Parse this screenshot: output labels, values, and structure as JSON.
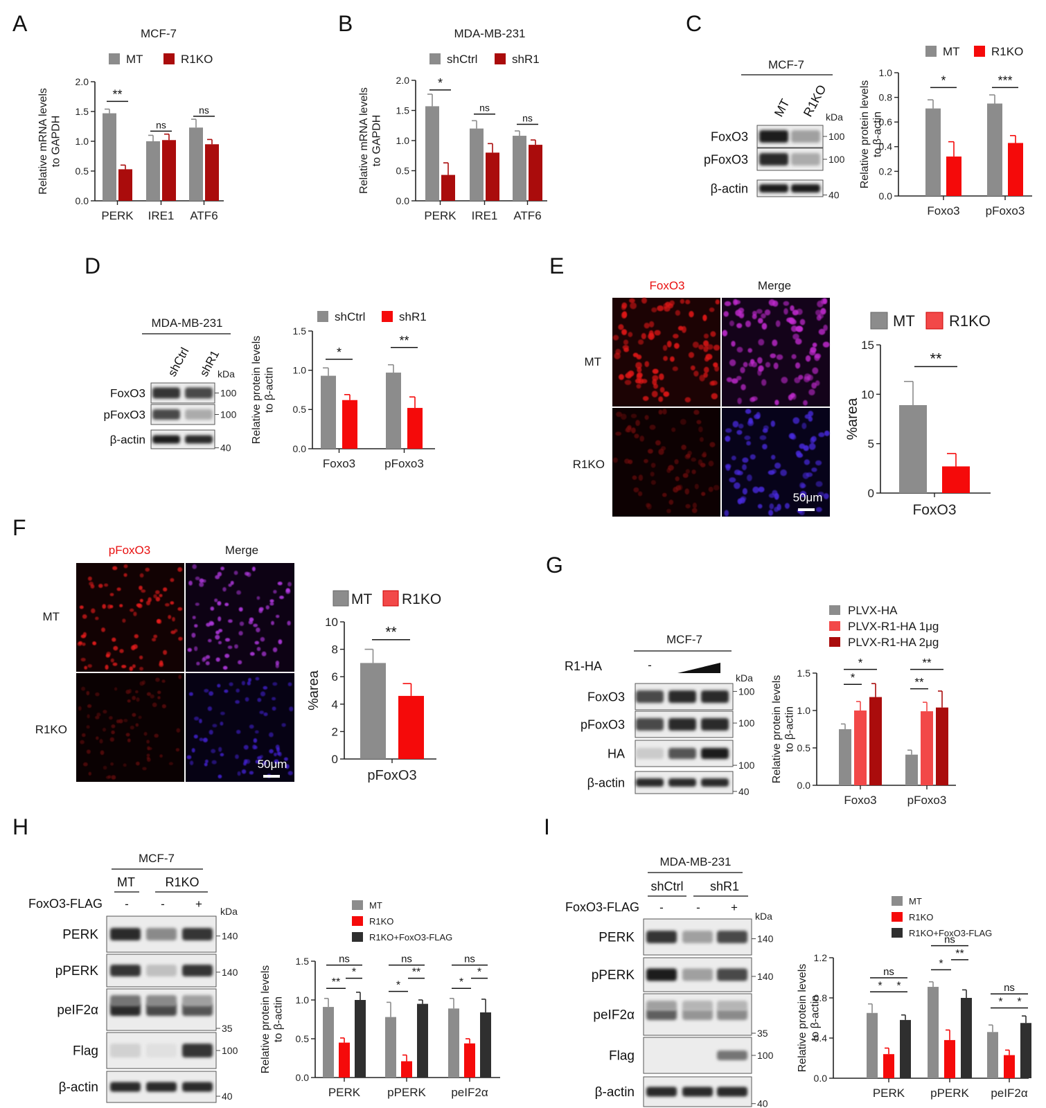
{
  "colors": {
    "gray": "#8c8c8c",
    "dark_red": "#aa0c0c",
    "red": "#f50a0a",
    "light_red": "#f24848",
    "black_bar": "#2f2f2f",
    "text_red": "#e81010"
  },
  "panels": {
    "A": {
      "letter": "A",
      "title": "MCF-7",
      "legend": [
        "MT",
        "R1KO"
      ]
    },
    "B": {
      "letter": "B",
      "title": "MDA-MB-231",
      "legend": [
        "shCtrl",
        "shR1"
      ]
    },
    "C": {
      "letter": "C",
      "title": "MCF-7",
      "legend": [
        "MT",
        "R1KO"
      ],
      "lanes": [
        "MT",
        "R1KO"
      ],
      "blot_rows": [
        "FoxO3",
        "pFoxO3",
        "β-actin"
      ],
      "kda_label": "kDa",
      "kda_marks": [
        "100",
        "100",
        "40"
      ]
    },
    "D": {
      "letter": "D",
      "title": "MDA-MB-231",
      "legend": [
        "shCtrl",
        "shR1"
      ],
      "lanes": [
        "shCtrl",
        "shR1"
      ],
      "blot_rows": [
        "FoxO3",
        "pFoxO3",
        "β-actin"
      ],
      "kda_label": "kDa",
      "kda_marks": [
        "100",
        "100",
        "40"
      ]
    },
    "E": {
      "letter": "E",
      "col_labels": [
        "FoxO3",
        "Merge"
      ],
      "row_labels": [
        "MT",
        "R1KO"
      ],
      "scale": "50μm",
      "legend": [
        "MT",
        "R1KO"
      ]
    },
    "F": {
      "letter": "F",
      "col_labels": [
        "pFoxO3",
        "Merge"
      ],
      "row_labels": [
        "MT",
        "R1KO"
      ],
      "scale": "50μm",
      "legend": [
        "MT",
        "R1KO"
      ]
    },
    "G": {
      "letter": "G",
      "title": "MCF-7",
      "treatment": "R1-HA",
      "lane_minus": "-",
      "blot_rows": [
        "FoxO3",
        "pFoxO3",
        "HA",
        "β-actin"
      ],
      "kda_label": "kDa",
      "kda_marks": [
        "100",
        "100",
        "100",
        "40"
      ],
      "legend": [
        "PLVX-HA",
        "PLVX-R1-HA 1μg",
        "PLVX-R1-HA 2μg"
      ]
    },
    "H": {
      "letter": "H",
      "title": "MCF-7",
      "groups": [
        "MT",
        "R1KO"
      ],
      "treatment": "FoxO3-FLAG",
      "signs": [
        "-",
        "-",
        "+"
      ],
      "blot_rows": [
        "PERK",
        "pPERK",
        "peIF2α",
        "Flag",
        "β-actin"
      ],
      "kda_label": "kDa",
      "kda_marks": [
        "140",
        "140",
        "35",
        "100",
        "40"
      ],
      "legend": [
        "MT",
        "R1KO",
        "R1KO+FoxO3-FLAG"
      ]
    },
    "I": {
      "letter": "I",
      "title": "MDA-MB-231",
      "groups": [
        "shCtrl",
        "shR1"
      ],
      "treatment": "FoxO3-FLAG",
      "signs": [
        "-",
        "-",
        "+"
      ],
      "blot_rows": [
        "PERK",
        "pPERK",
        "peIF2α",
        "Flag",
        "β-actin"
      ],
      "kda_label": "kDa",
      "kda_marks": [
        "140",
        "140",
        "35",
        "100",
        "40"
      ],
      "legend": [
        "MT",
        "R1KO",
        "R1KO+FoxO3-FLAG"
      ]
    }
  },
  "chart_data": [
    {
      "id": "A",
      "type": "bar",
      "categories": [
        "PERK",
        "IRE1",
        "ATF6"
      ],
      "series": [
        {
          "name": "MT",
          "values": [
            1.47,
            1.0,
            1.23
          ],
          "errors": [
            0.07,
            0.1,
            0.14
          ]
        },
        {
          "name": "R1KO",
          "values": [
            0.53,
            1.02,
            0.95
          ],
          "errors": [
            0.07,
            0.1,
            0.08
          ]
        }
      ],
      "ylabel": "Relative mRNA levels to GAPDH",
      "ylim": [
        0,
        2.0
      ],
      "yticks": [
        "0.0",
        "0.5",
        "1.0",
        "1.5",
        "2.0"
      ],
      "significance": [
        "**",
        "ns",
        "ns"
      ]
    },
    {
      "id": "B",
      "type": "bar",
      "categories": [
        "PERK",
        "IRE1",
        "ATF6"
      ],
      "series": [
        {
          "name": "shCtrl",
          "values": [
            1.57,
            1.2,
            1.08
          ],
          "errors": [
            0.2,
            0.13,
            0.08
          ]
        },
        {
          "name": "shR1",
          "values": [
            0.43,
            0.8,
            0.93
          ],
          "errors": [
            0.2,
            0.15,
            0.08
          ]
        }
      ],
      "ylabel": "Relative mRNA levels to GAPDH",
      "ylim": [
        0,
        2.0
      ],
      "yticks": [
        "0.0",
        "0.5",
        "1.0",
        "1.5",
        "2.0"
      ],
      "significance": [
        "*",
        "ns",
        "ns"
      ]
    },
    {
      "id": "C",
      "type": "bar",
      "categories": [
        "Foxo3",
        "pFoxo3"
      ],
      "series": [
        {
          "name": "MT",
          "values": [
            0.71,
            0.75
          ],
          "errors": [
            0.07,
            0.07
          ]
        },
        {
          "name": "R1KO",
          "values": [
            0.32,
            0.43
          ],
          "errors": [
            0.12,
            0.06
          ]
        }
      ],
      "ylabel": "Relative protein levels to β-actin",
      "ylim": [
        0,
        1.0
      ],
      "yticks": [
        "0.0",
        "0.2",
        "0.4",
        "0.6",
        "0.8",
        "1.0"
      ],
      "significance": [
        "*",
        "***"
      ]
    },
    {
      "id": "D",
      "type": "bar",
      "categories": [
        "Foxo3",
        "pFoxo3"
      ],
      "series": [
        {
          "name": "shCtrl",
          "values": [
            0.93,
            0.97
          ],
          "errors": [
            0.1,
            0.1
          ]
        },
        {
          "name": "shR1",
          "values": [
            0.62,
            0.52
          ],
          "errors": [
            0.07,
            0.14
          ]
        }
      ],
      "ylabel": "Relative protein levels to β-actin",
      "ylim": [
        0,
        1.5
      ],
      "yticks": [
        "0.0",
        "0.5",
        "1.0",
        "1.5"
      ],
      "significance": [
        "*",
        "**"
      ]
    },
    {
      "id": "E",
      "type": "bar",
      "categories": [
        "FoxO3"
      ],
      "series": [
        {
          "name": "MT",
          "values": [
            8.9
          ],
          "errors": [
            2.4
          ]
        },
        {
          "name": "R1KO",
          "values": [
            2.7
          ],
          "errors": [
            1.3
          ]
        }
      ],
      "ylabel": "%area",
      "ylim": [
        0,
        15
      ],
      "yticks": [
        "0",
        "5",
        "10",
        "15"
      ],
      "significance": [
        "**"
      ]
    },
    {
      "id": "F",
      "type": "bar",
      "categories": [
        "pFoxO3"
      ],
      "series": [
        {
          "name": "MT",
          "values": [
            7.0
          ],
          "errors": [
            1.0
          ]
        },
        {
          "name": "R1KO",
          "values": [
            4.6
          ],
          "errors": [
            0.9
          ]
        }
      ],
      "ylabel": "%area",
      "ylim": [
        0,
        10
      ],
      "yticks": [
        "0",
        "2",
        "4",
        "6",
        "8",
        "10"
      ],
      "significance": [
        "**"
      ]
    },
    {
      "id": "G",
      "type": "bar",
      "categories": [
        "Foxo3",
        "pFoxo3"
      ],
      "series": [
        {
          "name": "PLVX-HA",
          "values": [
            0.75,
            0.41
          ],
          "errors": [
            0.07,
            0.06
          ]
        },
        {
          "name": "PLVX-R1-HA 1μg",
          "values": [
            1.0,
            0.99
          ],
          "errors": [
            0.12,
            0.12
          ]
        },
        {
          "name": "PLVX-R1-HA 2μg",
          "values": [
            1.18,
            1.04
          ],
          "errors": [
            0.18,
            0.22
          ]
        }
      ],
      "ylabel": "Relative protein levels to β-actin",
      "ylim": [
        0,
        1.5
      ],
      "yticks": [
        "0.0",
        "0.5",
        "1.0",
        "1.5"
      ],
      "significance": [
        "*",
        "*",
        "**",
        "**"
      ]
    },
    {
      "id": "H",
      "type": "bar",
      "categories": [
        "PERK",
        "pPERK",
        "peIF2α"
      ],
      "series": [
        {
          "name": "MT",
          "values": [
            0.91,
            0.78,
            0.89
          ],
          "errors": [
            0.11,
            0.19,
            0.13
          ]
        },
        {
          "name": "R1KO",
          "values": [
            0.45,
            0.21,
            0.44
          ],
          "errors": [
            0.06,
            0.08,
            0.06
          ]
        },
        {
          "name": "R1KO+FoxO3-FLAG",
          "values": [
            1.0,
            0.95,
            0.84
          ],
          "errors": [
            0.1,
            0.05,
            0.17
          ]
        }
      ],
      "ylabel": "Relative protein levels to β-actin",
      "ylim": [
        0,
        1.5
      ],
      "yticks": [
        "0.0",
        "0.5",
        "1.0",
        "1.5"
      ],
      "significance": [
        [
          "**",
          "*",
          "ns"
        ],
        [
          "*",
          "**",
          "ns"
        ],
        [
          "*",
          "*",
          "ns"
        ]
      ]
    },
    {
      "id": "I",
      "type": "bar",
      "categories": [
        "PERK",
        "pPERK",
        "peIF2α"
      ],
      "series": [
        {
          "name": "MT",
          "values": [
            0.65,
            0.91,
            0.46
          ],
          "errors": [
            0.09,
            0.05,
            0.07
          ]
        },
        {
          "name": "R1KO",
          "values": [
            0.24,
            0.38,
            0.23
          ],
          "errors": [
            0.06,
            0.1,
            0.05
          ]
        },
        {
          "name": "R1KO+FoxO3-FLAG",
          "values": [
            0.58,
            0.8,
            0.55
          ],
          "errors": [
            0.05,
            0.08,
            0.07
          ]
        }
      ],
      "ylabel": "Relative protein levels to β-actin",
      "ylim": [
        0,
        1.2
      ],
      "yticks": [
        "0.0",
        "0.4",
        "0.8",
        "1.2"
      ],
      "significance": [
        [
          "*",
          "*",
          "ns"
        ],
        [
          "*",
          "**",
          "ns"
        ],
        [
          "*",
          "*",
          "ns"
        ]
      ]
    }
  ]
}
